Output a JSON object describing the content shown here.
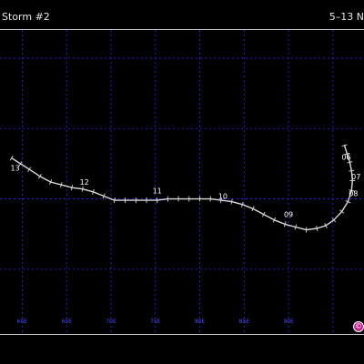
{
  "header": {
    "storm_name": "Storm #2",
    "date_range": "5–13 N"
  },
  "map": {
    "grid_color": "#2a2aff",
    "track_color": "#d9d9d9",
    "label_color": "#4a4aff",
    "lon_range": [
      57.5,
      98.5
    ],
    "lat_range": [
      -9.6,
      12.0
    ],
    "lon_gridlines": [
      60,
      65,
      70,
      75,
      80,
      85,
      90,
      95
    ],
    "lat_gridlines": [
      10,
      5,
      0,
      -5
    ],
    "lon_labels": [
      {
        "lon": 60,
        "text": "60E"
      },
      {
        "lon": 65,
        "text": "65E"
      },
      {
        "lon": 70,
        "text": "70E"
      },
      {
        "lon": 75,
        "text": "75E"
      },
      {
        "lon": 80,
        "text": "80E"
      },
      {
        "lon": 85,
        "text": "85E"
      },
      {
        "lon": 90,
        "text": "90E"
      }
    ],
    "track": [
      [
        96.3,
        3.8
      ],
      [
        96.6,
        3.2
      ],
      [
        96.9,
        2.6
      ],
      [
        97.1,
        2.0
      ],
      [
        97.2,
        1.3
      ],
      [
        97.1,
        0.6
      ],
      [
        96.7,
        -0.2
      ],
      [
        96.0,
        -0.9
      ],
      [
        95.1,
        -1.5
      ],
      [
        94.2,
        -1.9
      ],
      [
        93.2,
        -2.1
      ],
      [
        92.0,
        -2.2
      ],
      [
        90.8,
        -2.0
      ],
      [
        89.6,
        -1.8
      ],
      [
        88.4,
        -1.5
      ],
      [
        87.2,
        -1.1
      ],
      [
        86.0,
        -0.7
      ],
      [
        84.8,
        -0.4
      ],
      [
        83.6,
        -0.2
      ],
      [
        82.4,
        -0.1
      ],
      [
        81.2,
        0.0
      ],
      [
        80.0,
        0.0
      ],
      [
        78.8,
        0.0
      ],
      [
        77.6,
        0.0
      ],
      [
        76.4,
        0.0
      ],
      [
        75.2,
        -0.1
      ],
      [
        74.0,
        -0.1
      ],
      [
        72.8,
        -0.1
      ],
      [
        71.6,
        -0.1
      ],
      [
        70.4,
        -0.1
      ],
      [
        69.2,
        0.2
      ],
      [
        68.0,
        0.5
      ],
      [
        66.8,
        0.7
      ],
      [
        65.6,
        0.8
      ],
      [
        64.4,
        1.0
      ],
      [
        63.2,
        1.2
      ],
      [
        62.0,
        1.6
      ],
      [
        60.8,
        2.1
      ],
      [
        59.8,
        2.5
      ],
      [
        58.8,
        2.9
      ]
    ],
    "day_labels": [
      {
        "lon": 59.2,
        "lat": 2.0,
        "text": "13"
      },
      {
        "lon": 67.0,
        "lat": 1.0,
        "text": "12"
      },
      {
        "lon": 75.2,
        "lat": 0.4,
        "text": "11"
      },
      {
        "lon": 82.6,
        "lat": 0.0,
        "text": "10"
      },
      {
        "lon": 90.0,
        "lat": -1.3,
        "text": "09"
      },
      {
        "lon": 97.3,
        "lat": 0.2,
        "text": "08"
      },
      {
        "lon": 97.6,
        "lat": 1.4,
        "text": "07"
      },
      {
        "lon": 96.5,
        "lat": 2.8,
        "text": "06"
      }
    ]
  },
  "footer": {
    "copyright_symbol": "©"
  }
}
